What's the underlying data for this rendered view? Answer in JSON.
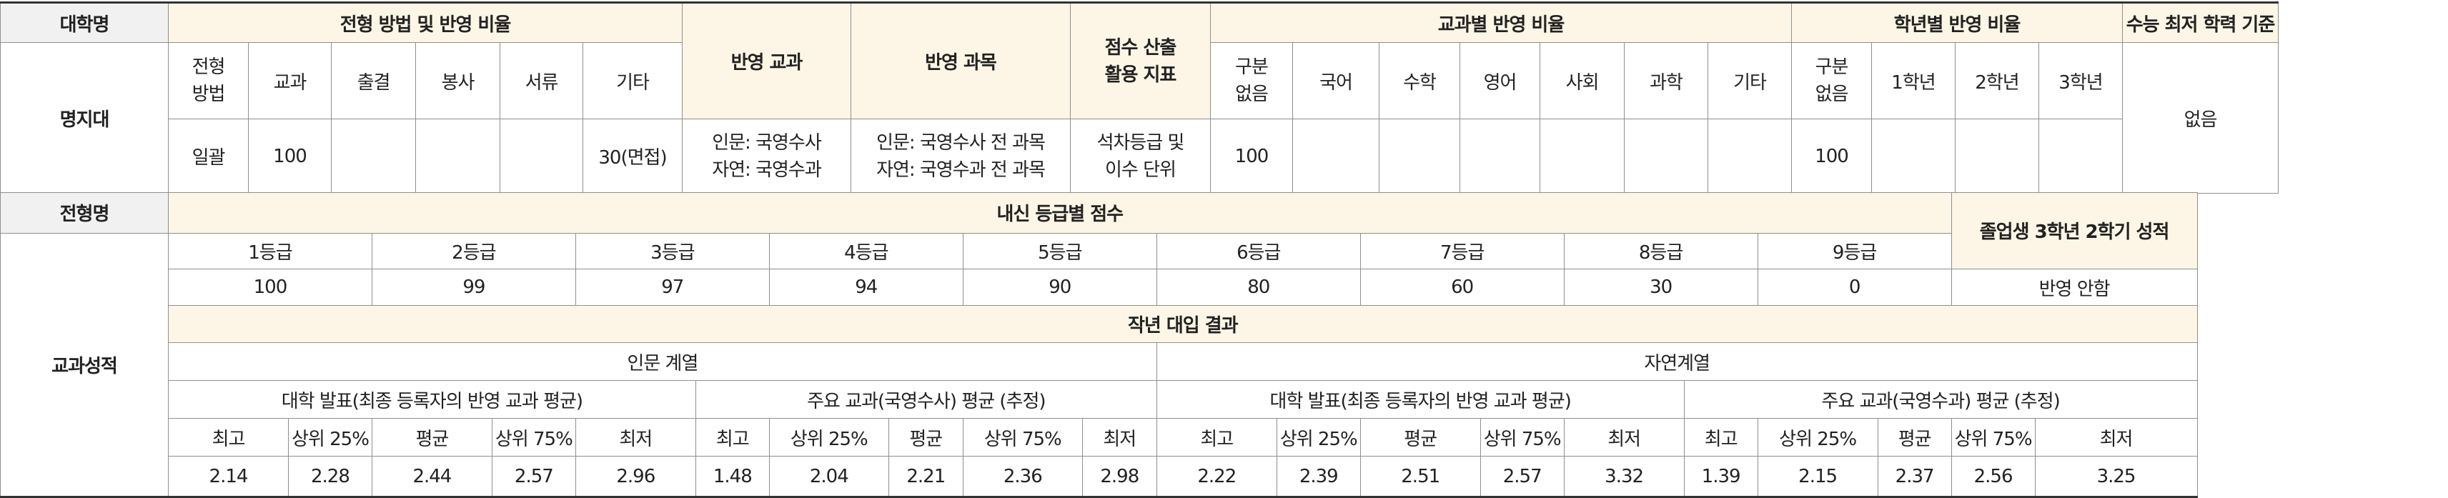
{
  "top": {
    "school_header": "대학명",
    "school": "명지대",
    "method_header": "전형 방법 및 반영 비율",
    "method_cols": [
      "전형\n방법",
      "교과",
      "출결",
      "봉사",
      "서류",
      "기타"
    ],
    "method_vals": [
      "일괄",
      "100",
      "",
      "",
      "",
      "30(면접)"
    ],
    "subject_header": "반영 교과",
    "subject_val": "인문: 국영수사\n자연: 국영수과",
    "courses_header": "반영 과목",
    "courses_val": "인문: 국영수사 전 과목\n자연: 국영수과 전 과목",
    "index_header": "점수 산출\n활용 지표",
    "index_val": "석차등급 및\n이수 단위",
    "ratio_header": "교과별 반영 비율",
    "ratio_cols": [
      "구분\n없음",
      "국어",
      "수학",
      "영어",
      "사회",
      "과학",
      "기타"
    ],
    "ratio_vals": [
      "100",
      "",
      "",
      "",
      "",
      "",
      ""
    ],
    "grade_header": "학년별 반영 비율",
    "grade_cols": [
      "구분\n없음",
      "1학년",
      "2학년",
      "3학년"
    ],
    "grade_vals": [
      "100",
      "",
      "",
      ""
    ],
    "min_header": "수능 최저 학력 기준",
    "min_val": "없음"
  },
  "bottom": {
    "type_header": "전형명",
    "type_name": "교과성적",
    "grade_score_header": "내신 등급별 점수",
    "grade_levels": [
      "1등급",
      "2등급",
      "3등급",
      "4등급",
      "5등급",
      "6등급",
      "7등급",
      "8등급",
      "9등급"
    ],
    "grade_scores": [
      "100",
      "99",
      "97",
      "94",
      "90",
      "80",
      "60",
      "30",
      "0"
    ],
    "grad_header": "졸업생 3학년 2학기 성적",
    "grad_val": "반영 안함",
    "result_header": "작년 대입 결과",
    "humanities": "인문 계열",
    "science": "자연계열",
    "groups": [
      "대학 발표(최종 등록자의 반영 교과 평균)",
      "주요 교과(국영수사) 평균 (추정)",
      "대학 발표(최종 등록자의  반영 교과 평균)",
      "주요 교과(국영수과) 평균 (추정)"
    ],
    "stat_cols": [
      "최고",
      "상위 25%",
      "평균",
      "상위 75%",
      "최저"
    ],
    "stat_vals": [
      [
        "2.14",
        "2.28",
        "2.44",
        "2.57",
        "2.96"
      ],
      [
        "1.48",
        "2.04",
        "2.21",
        "2.36",
        "2.98"
      ],
      [
        "2.22",
        "2.39",
        "2.51",
        "2.57",
        "3.32"
      ],
      [
        "1.39",
        "2.15",
        "2.37",
        "2.56",
        "3.25"
      ]
    ]
  }
}
